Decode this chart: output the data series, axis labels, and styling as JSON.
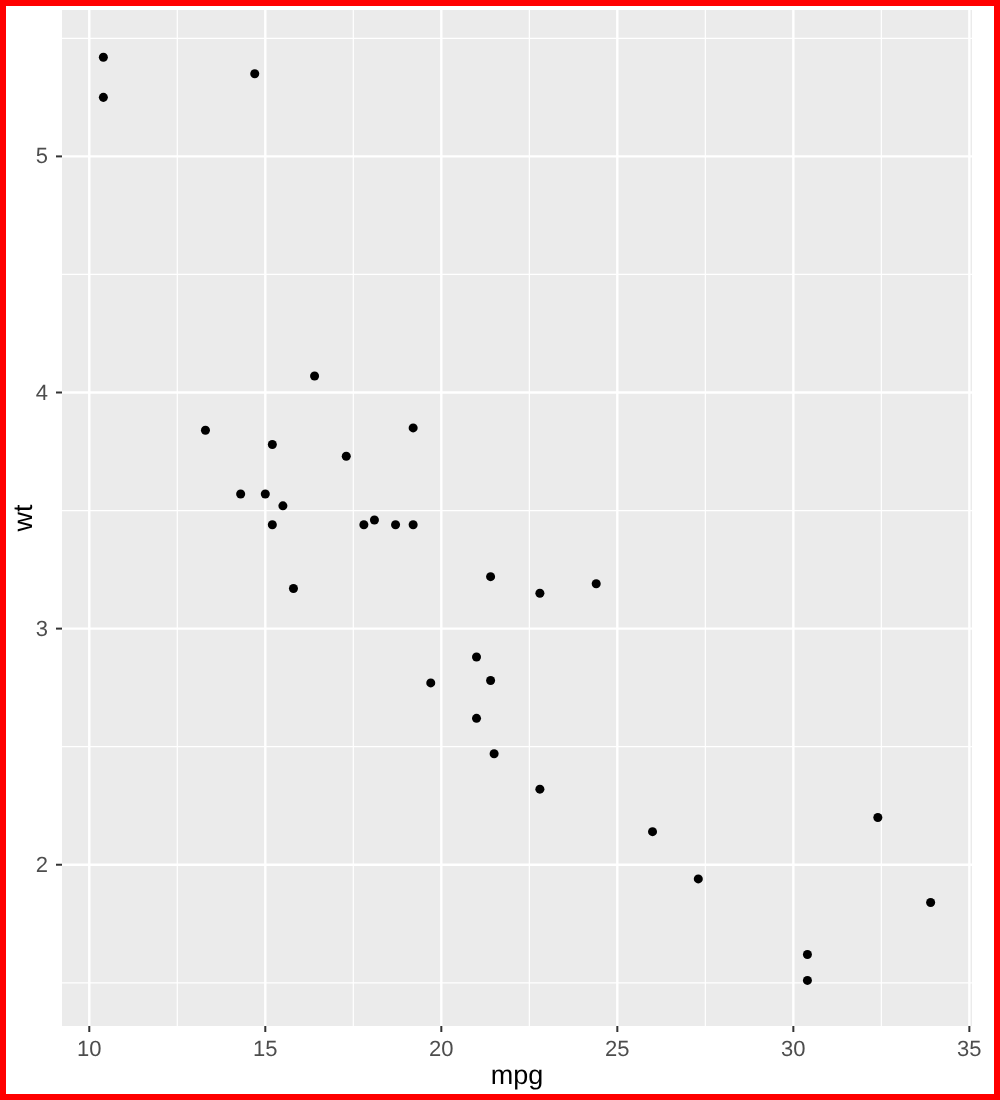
{
  "chart_data": {
    "type": "scatter",
    "xlabel": "mpg",
    "ylabel": "wt",
    "x": [
      21.0,
      21.0,
      22.8,
      21.4,
      18.7,
      18.1,
      14.3,
      24.4,
      22.8,
      19.2,
      17.8,
      16.4,
      17.3,
      15.2,
      10.4,
      10.4,
      14.7,
      32.4,
      30.4,
      33.9,
      21.5,
      15.5,
      15.2,
      13.3,
      19.2,
      27.3,
      26.0,
      30.4,
      15.8,
      19.7,
      15.0,
      21.4
    ],
    "values": [
      2.62,
      2.88,
      2.32,
      3.22,
      3.44,
      3.46,
      3.57,
      3.19,
      3.15,
      3.44,
      3.44,
      4.07,
      3.73,
      3.78,
      5.25,
      5.42,
      5.35,
      2.2,
      1.62,
      1.84,
      2.47,
      3.52,
      3.44,
      3.84,
      3.85,
      1.94,
      2.14,
      1.51,
      3.17,
      2.77,
      3.57,
      2.78
    ],
    "color": "#000000",
    "marker": "circle",
    "xlim": [
      9.225,
      35.075
    ],
    "ylim": [
      1.317,
      5.62
    ],
    "xticks": [
      10,
      15,
      20,
      25,
      30,
      35
    ],
    "yticks": [
      2,
      3,
      4,
      5
    ],
    "grid": true
  }
}
